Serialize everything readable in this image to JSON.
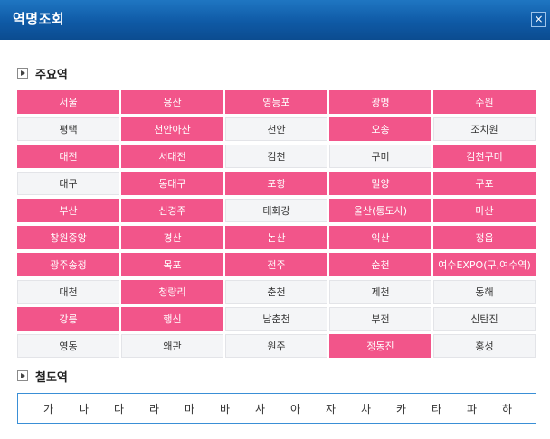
{
  "window": {
    "title": "역명조회",
    "close_label": "×"
  },
  "sections": {
    "major": "주요역",
    "railway": "철도역"
  },
  "colors": {
    "highlight": "#f2558a",
    "plain": "#f4f5f7",
    "titlebar": "#0f5aa6"
  },
  "stations": [
    {
      "label": "서울",
      "highlight": true
    },
    {
      "label": "용산",
      "highlight": true
    },
    {
      "label": "영등포",
      "highlight": true
    },
    {
      "label": "광명",
      "highlight": true
    },
    {
      "label": "수원",
      "highlight": true
    },
    {
      "label": "평택",
      "highlight": false
    },
    {
      "label": "천안아산",
      "highlight": true
    },
    {
      "label": "천안",
      "highlight": false
    },
    {
      "label": "오송",
      "highlight": true
    },
    {
      "label": "조치원",
      "highlight": false
    },
    {
      "label": "대전",
      "highlight": true
    },
    {
      "label": "서대전",
      "highlight": true
    },
    {
      "label": "김천",
      "highlight": false
    },
    {
      "label": "구미",
      "highlight": false
    },
    {
      "label": "김천구미",
      "highlight": true
    },
    {
      "label": "대구",
      "highlight": false
    },
    {
      "label": "동대구",
      "highlight": true
    },
    {
      "label": "포항",
      "highlight": true
    },
    {
      "label": "밀양",
      "highlight": true
    },
    {
      "label": "구포",
      "highlight": true
    },
    {
      "label": "부산",
      "highlight": true
    },
    {
      "label": "신경주",
      "highlight": true
    },
    {
      "label": "태화강",
      "highlight": false
    },
    {
      "label": "울산(통도사)",
      "highlight": true
    },
    {
      "label": "마산",
      "highlight": true
    },
    {
      "label": "창원중앙",
      "highlight": true
    },
    {
      "label": "경산",
      "highlight": true
    },
    {
      "label": "논산",
      "highlight": true
    },
    {
      "label": "익산",
      "highlight": true
    },
    {
      "label": "정읍",
      "highlight": true
    },
    {
      "label": "광주송정",
      "highlight": true
    },
    {
      "label": "목포",
      "highlight": true
    },
    {
      "label": "전주",
      "highlight": true
    },
    {
      "label": "순천",
      "highlight": true
    },
    {
      "label": "여수EXPO(구,여수역)",
      "highlight": true
    },
    {
      "label": "대천",
      "highlight": false
    },
    {
      "label": "청량리",
      "highlight": true
    },
    {
      "label": "춘천",
      "highlight": false
    },
    {
      "label": "제천",
      "highlight": false
    },
    {
      "label": "동해",
      "highlight": false
    },
    {
      "label": "강릉",
      "highlight": true
    },
    {
      "label": "행신",
      "highlight": true
    },
    {
      "label": "남춘천",
      "highlight": false
    },
    {
      "label": "부전",
      "highlight": false
    },
    {
      "label": "신탄진",
      "highlight": false
    },
    {
      "label": "영동",
      "highlight": false
    },
    {
      "label": "왜관",
      "highlight": false
    },
    {
      "label": "원주",
      "highlight": false
    },
    {
      "label": "정동진",
      "highlight": true
    },
    {
      "label": "홍성",
      "highlight": false
    }
  ],
  "initials": [
    "가",
    "나",
    "다",
    "라",
    "마",
    "바",
    "사",
    "아",
    "자",
    "차",
    "카",
    "타",
    "파",
    "하"
  ]
}
